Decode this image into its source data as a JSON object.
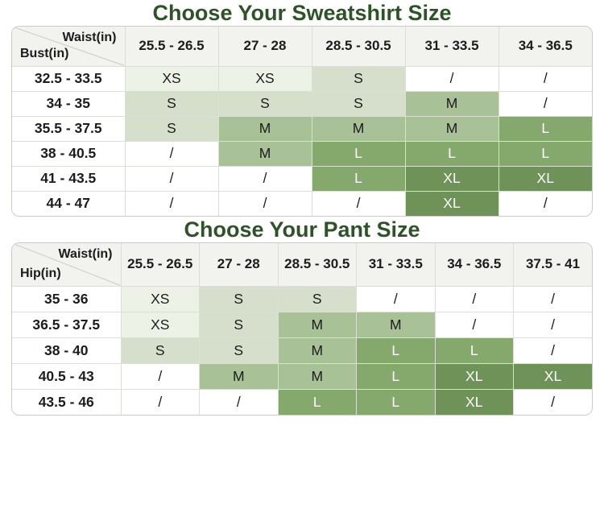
{
  "colors": {
    "title": "#2d5426",
    "header_bg": "#f2f3ee",
    "outer_border": "#c9cbc4",
    "grid_line": "#dcdfd6",
    "text_dark": "#1c1c1c",
    "text_light": "#ffffff"
  },
  "size_styles": {
    "XS": {
      "bg": "#edf2e7",
      "text": "#1c1c1c"
    },
    "S": {
      "bg": "#d6dfcb",
      "text": "#1c1c1c"
    },
    "M": {
      "bg": "#a9c197",
      "text": "#1c1c1c"
    },
    "L": {
      "bg": "#85a86c",
      "text": "#ffffff"
    },
    "XL": {
      "bg": "#6e9257",
      "text": "#ffffff"
    },
    "/": {
      "bg": "#ffffff",
      "text": "#1c1c1c"
    }
  },
  "tables": [
    {
      "title": "Choose Your Sweatshirt Size",
      "corner_top": "Waist(in)",
      "corner_bottom": "Bust(in)",
      "columns": [
        "25.5 - 26.5",
        "27 - 28",
        "28.5 - 30.5",
        "31 - 33.5",
        "34 - 36.5"
      ],
      "rows": [
        {
          "label": "32.5 - 33.5",
          "cells": [
            "XS",
            "XS",
            "S",
            "/",
            "/"
          ]
        },
        {
          "label": "34 - 35",
          "cells": [
            "S",
            "S",
            "S",
            "M",
            "/"
          ]
        },
        {
          "label": "35.5 - 37.5",
          "cells": [
            "S",
            "M",
            "M",
            "M",
            "L"
          ]
        },
        {
          "label": "38 - 40.5",
          "cells": [
            "/",
            "M",
            "L",
            "L",
            "L"
          ]
        },
        {
          "label": "41 - 43.5",
          "cells": [
            "/",
            "/",
            "L",
            "XL",
            "XL"
          ]
        },
        {
          "label": "44 - 47",
          "cells": [
            "/",
            "/",
            "/",
            "XL",
            "/"
          ]
        }
      ]
    },
    {
      "title": "Choose Your Pant Size",
      "corner_top": "Waist(in)",
      "corner_bottom": "Hip(in)",
      "columns": [
        "25.5 - 26.5",
        "27 - 28",
        "28.5 - 30.5",
        "31 - 33.5",
        "34 - 36.5",
        "37.5 - 41"
      ],
      "rows": [
        {
          "label": "35 - 36",
          "cells": [
            "XS",
            "S",
            "S",
            "/",
            "/",
            "/"
          ]
        },
        {
          "label": "36.5 - 37.5",
          "cells": [
            "XS",
            "S",
            "M",
            "M",
            "/",
            "/"
          ]
        },
        {
          "label": "38 - 40",
          "cells": [
            "S",
            "S",
            "M",
            "L",
            "L",
            "/"
          ]
        },
        {
          "label": "40.5 - 43",
          "cells": [
            "/",
            "M",
            "M",
            "L",
            "XL",
            "XL"
          ]
        },
        {
          "label": "43.5 - 46",
          "cells": [
            "/",
            "/",
            "L",
            "L",
            "XL",
            "/"
          ]
        }
      ]
    }
  ]
}
